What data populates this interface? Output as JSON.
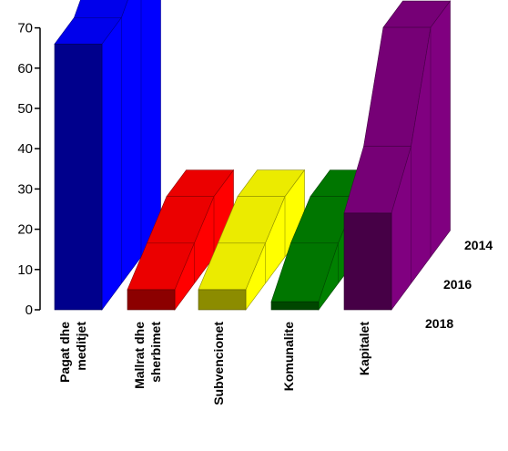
{
  "chart_data": {
    "type": "area",
    "view": "3d",
    "title": "",
    "xlabel": "",
    "ylabel": "",
    "ylim": [
      0,
      70
    ],
    "yticks": [
      0,
      10,
      20,
      30,
      40,
      50,
      60,
      70
    ],
    "series_order_front_to_back": [
      "2018",
      "2016",
      "2014"
    ],
    "categories": [
      {
        "lines": [
          "Pagat dhe",
          "meditjet"
        ],
        "color": "#0000ff"
      },
      {
        "lines": [
          "Mallrat dhe",
          "sherbimet"
        ],
        "color": "#ff0000"
      },
      {
        "lines": [
          "Subvencionet"
        ],
        "color": "#ffff00"
      },
      {
        "lines": [
          "Komunalite"
        ],
        "color": "#008000"
      },
      {
        "lines": [
          "Kapitalet"
        ],
        "color": "#800080"
      }
    ],
    "series": [
      {
        "name": "2018",
        "values": [
          66,
          5,
          5,
          2,
          24
        ]
      },
      {
        "name": "2016",
        "values": [
          66,
          10,
          10,
          10,
          34
        ]
      },
      {
        "name": "2014",
        "values": [
          73,
          15,
          15,
          15,
          57
        ]
      }
    ],
    "grid": false,
    "legend": "none"
  }
}
